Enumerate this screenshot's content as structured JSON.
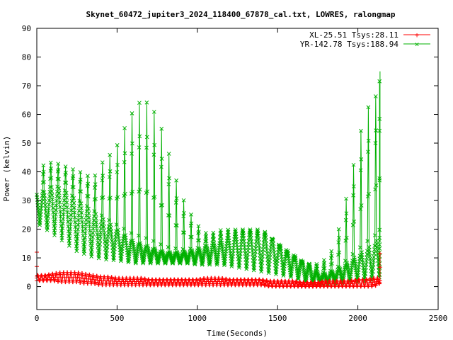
{
  "chart_data": {
    "type": "line",
    "title": "Skynet_60472_jupiter3_2024_118400_67878_cal.txt, LOWRES, ralongmap",
    "xlabel": "Time(Seconds)",
    "ylabel": "Power (kelvin)",
    "xlim": [
      0,
      2500
    ],
    "ylim": [
      -8,
      90
    ],
    "xticks": [
      0,
      500,
      1000,
      1500,
      2000,
      2500
    ],
    "yticks": [
      0,
      10,
      20,
      30,
      40,
      50,
      60,
      70,
      80,
      90
    ],
    "legend_position": "top-right",
    "grid": false,
    "scan_period_s": 46,
    "series": [
      {
        "name": "XL-25.51 Tsys:28.11",
        "color": "#ff0000",
        "marker": "plus",
        "x": [
          0,
          50,
          100,
          150,
          200,
          250,
          300,
          350,
          400,
          450,
          500,
          550,
          600,
          650,
          700,
          750,
          800,
          850,
          900,
          950,
          1000,
          1050,
          1100,
          1150,
          1200,
          1250,
          1300,
          1350,
          1400,
          1450,
          1500,
          1550,
          1600,
          1650,
          1700,
          1750,
          1800,
          1850,
          1900,
          1950,
          2000,
          2050,
          2100,
          2135
        ],
        "y_low": [
          2,
          2,
          2,
          1.5,
          1.5,
          1.5,
          1,
          1,
          0.5,
          0.5,
          0.5,
          0.5,
          0.5,
          0.5,
          0.5,
          0.5,
          0.5,
          0.5,
          0.5,
          0.5,
          0.5,
          0.5,
          0.5,
          0.5,
          0.5,
          0.5,
          0.5,
          0.5,
          0.5,
          0,
          0,
          0,
          0,
          0,
          0,
          0,
          0,
          0,
          0,
          0,
          0,
          0,
          0,
          1
        ],
        "y_high": [
          4,
          4,
          4.5,
          5,
          5,
          5,
          4.5,
          4,
          3.5,
          3.5,
          3,
          3,
          3,
          3,
          2.5,
          2.5,
          2.5,
          2.5,
          2.5,
          2.5,
          2.5,
          3,
          3,
          3,
          2.5,
          2.5,
          2.5,
          2.5,
          2.5,
          2,
          2,
          2,
          2,
          1.5,
          1.5,
          1.5,
          2,
          2,
          2,
          2,
          2.5,
          2.5,
          3,
          3
        ],
        "edge_spikes": [
          {
            "x": 0,
            "y": [
              2,
              12
            ]
          },
          {
            "x": 2138,
            "y": [
              2,
              11.5
            ]
          }
        ]
      },
      {
        "name": "YR-142.78 Tsys:188.94",
        "color": "#00b000",
        "marker": "cross",
        "x": [
          0,
          50,
          100,
          150,
          200,
          250,
          300,
          350,
          400,
          450,
          500,
          550,
          600,
          650,
          700,
          750,
          800,
          850,
          900,
          950,
          1000,
          1050,
          1100,
          1150,
          1200,
          1250,
          1300,
          1350,
          1400,
          1450,
          1500,
          1550,
          1600,
          1650,
          1700,
          1750,
          1800,
          1850,
          1900,
          1950,
          2000,
          2050,
          2100,
          2135
        ],
        "y_low": [
          22,
          20,
          18,
          16,
          14,
          12,
          11,
          10,
          9.5,
          9,
          9,
          8.5,
          8,
          8,
          8,
          8,
          8,
          8,
          8,
          8,
          7.5,
          7.5,
          7.5,
          7.5,
          7,
          6.5,
          6,
          5.5,
          5,
          4.5,
          4,
          3.5,
          3,
          2,
          1,
          0.5,
          0.5,
          1,
          1,
          1.5,
          1.5,
          1.5,
          2,
          3
        ],
        "y_mid": [
          32,
          33,
          35,
          34,
          32,
          30,
          28,
          26,
          24,
          22,
          20,
          18,
          16,
          15,
          14,
          13,
          12,
          12,
          12,
          12.5,
          13,
          14,
          15,
          16,
          17,
          17.5,
          18,
          18,
          17.5,
          17,
          15,
          13,
          11,
          9,
          7,
          5,
          4.5,
          5.5,
          7,
          9,
          11,
          13,
          15,
          17
        ],
        "y_high": [
          42,
          43,
          44,
          43,
          42,
          41,
          40,
          38,
          44,
          47,
          51,
          58,
          64,
          68,
          67,
          62,
          54,
          42,
          33,
          27,
          22,
          19,
          19,
          20,
          20,
          20,
          20,
          20,
          20,
          18,
          14,
          11,
          9,
          8,
          8,
          8,
          10,
          14,
          25,
          38,
          52,
          65,
          67,
          75
        ],
        "end_point": {
          "x": 2138,
          "y": 75
        }
      }
    ]
  }
}
